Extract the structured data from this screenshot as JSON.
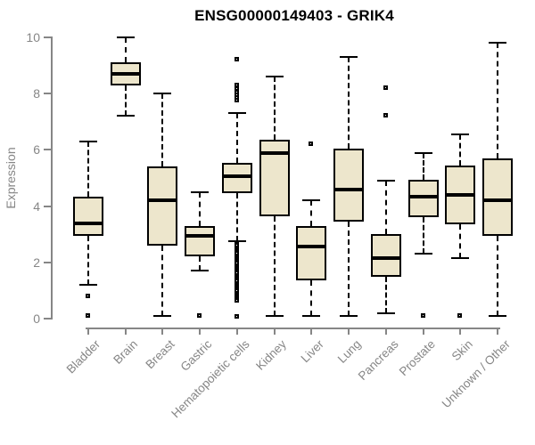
{
  "chart_data": {
    "type": "box",
    "title": "ENSG00000149403 - GRIK4",
    "xlabel": "",
    "ylabel": "Expression",
    "ylim": [
      0,
      10
    ],
    "yticks": [
      0,
      2,
      4,
      6,
      8,
      10
    ],
    "grid": "off",
    "legend": "none",
    "colors": {
      "box_fill": "#EDE6CC",
      "box_border": "#000000",
      "median": "#000000",
      "axis": "#868686",
      "tick_label": "#868686",
      "title": "#000000"
    },
    "categories": [
      "Bladder",
      "Brain",
      "Breast",
      "Gastric",
      "Hematopoietic cells",
      "Kidney",
      "Liver",
      "Lung",
      "Pancreas",
      "Prostate",
      "Skin",
      "Unknown / Other"
    ],
    "boxes": [
      {
        "category": "Bladder",
        "whisker_low": 1.2,
        "q1": 2.95,
        "median": 3.4,
        "q3": 4.35,
        "whisker_high": 6.3,
        "outliers": [
          0.8,
          0.1
        ]
      },
      {
        "category": "Brain",
        "whisker_low": 7.2,
        "q1": 8.3,
        "median": 8.7,
        "q3": 9.1,
        "whisker_high": 10.0,
        "outliers": []
      },
      {
        "category": "Breast",
        "whisker_low": 0.1,
        "q1": 2.6,
        "median": 4.2,
        "q3": 5.4,
        "whisker_high": 8.0,
        "outliers": []
      },
      {
        "category": "Gastric",
        "whisker_low": 1.7,
        "q1": 2.2,
        "median": 2.95,
        "q3": 3.3,
        "whisker_high": 4.5,
        "outliers": [
          0.1
        ]
      },
      {
        "category": "Hematopoietic cells",
        "whisker_low": 2.75,
        "q1": 4.45,
        "median": 5.05,
        "q3": 5.55,
        "whisker_high": 7.3,
        "outliers": [
          9.2,
          8.3,
          8.15,
          8.05,
          7.95,
          7.85,
          7.75,
          2.65,
          2.58,
          2.51,
          2.44,
          2.37,
          2.3,
          2.23,
          2.16,
          2.09,
          2.02,
          1.95,
          1.88,
          1.81,
          1.74,
          1.67,
          1.6,
          1.53,
          1.46,
          1.39,
          1.32,
          1.25,
          1.18,
          1.11,
          1.04,
          0.97,
          0.9,
          0.83,
          0.76,
          0.69,
          0.62,
          0.05
        ]
      },
      {
        "category": "Kidney",
        "whisker_low": 0.1,
        "q1": 3.65,
        "median": 5.9,
        "q3": 6.35,
        "whisker_high": 8.6,
        "outliers": []
      },
      {
        "category": "Liver",
        "whisker_low": 0.1,
        "q1": 1.35,
        "median": 2.55,
        "q3": 3.3,
        "whisker_high": 4.2,
        "outliers": [
          6.2
        ]
      },
      {
        "category": "Lung",
        "whisker_low": 0.1,
        "q1": 3.45,
        "median": 4.6,
        "q3": 6.05,
        "whisker_high": 9.3,
        "outliers": []
      },
      {
        "category": "Pancreas",
        "whisker_low": 0.2,
        "q1": 1.5,
        "median": 2.15,
        "q3": 3.0,
        "whisker_high": 4.9,
        "outliers": [
          8.2,
          7.2
        ]
      },
      {
        "category": "Prostate",
        "whisker_low": 2.3,
        "q1": 3.6,
        "median": 4.35,
        "q3": 4.95,
        "whisker_high": 5.9,
        "outliers": [
          0.1
        ]
      },
      {
        "category": "Skin",
        "whisker_low": 2.15,
        "q1": 3.35,
        "median": 4.4,
        "q3": 5.45,
        "whisker_high": 6.55,
        "outliers": [
          0.1
        ]
      },
      {
        "category": "Unknown / Other",
        "whisker_low": 0.1,
        "q1": 2.95,
        "median": 4.2,
        "q3": 5.7,
        "whisker_high": 9.8,
        "outliers": []
      }
    ]
  }
}
